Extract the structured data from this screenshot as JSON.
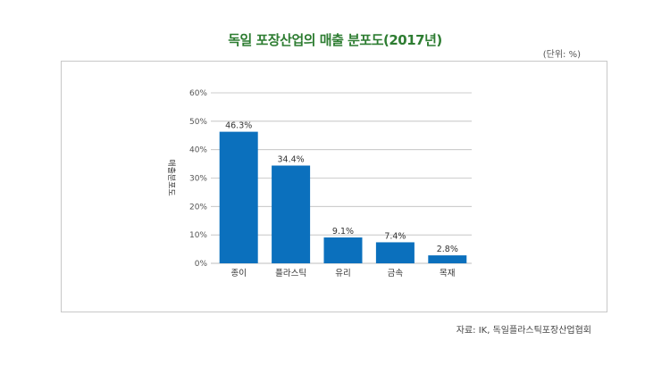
{
  "chart_data": {
    "type": "bar",
    "title": "독일 포장산업의 매출 분포도(2017년)",
    "unit_note": "(단위: %)",
    "ylabel": "매출분포도",
    "xlabel": "",
    "categories": [
      "종이",
      "플라스틱",
      "유리",
      "금속",
      "목재"
    ],
    "values": [
      46.3,
      34.4,
      9.1,
      7.4,
      2.8
    ],
    "data_labels": [
      "46.3%",
      "34.4%",
      "9.1%",
      "7.4%",
      "2.8%"
    ],
    "ylim": [
      0,
      60
    ],
    "yticks": [
      0,
      10,
      20,
      30,
      40,
      50,
      60
    ],
    "ytick_labels": [
      "0%",
      "10%",
      "20%",
      "30%",
      "40%",
      "50%",
      "60%"
    ],
    "grid": true,
    "bar_color": "#0b70bd",
    "grid_color": "#bdbdbd"
  },
  "source": "자료: IK, 독일플라스틱포장산업협회",
  "colors": {
    "title": "#2e7d32"
  }
}
